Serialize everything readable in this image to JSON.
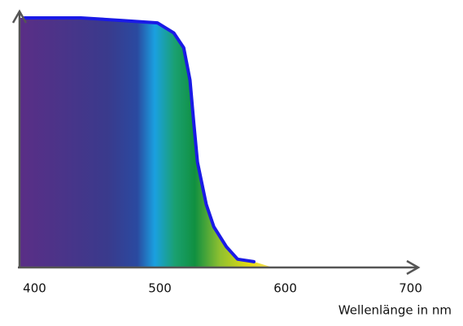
{
  "chart_data": {
    "type": "line",
    "x": [
      392,
      437,
      469,
      498,
      511,
      519,
      524,
      527,
      530,
      537,
      543,
      553,
      562,
      575
    ],
    "values": [
      100,
      100,
      99,
      98,
      94,
      88,
      75,
      58,
      42,
      25,
      16,
      8,
      3,
      2
    ],
    "color": "#1a1ae6",
    "xlim": [
      388,
      710
    ],
    "ylim": [
      0,
      100
    ],
    "xticks": [
      400,
      500,
      600,
      700
    ],
    "xlabel": "Wellenlänge in nm"
  }
}
